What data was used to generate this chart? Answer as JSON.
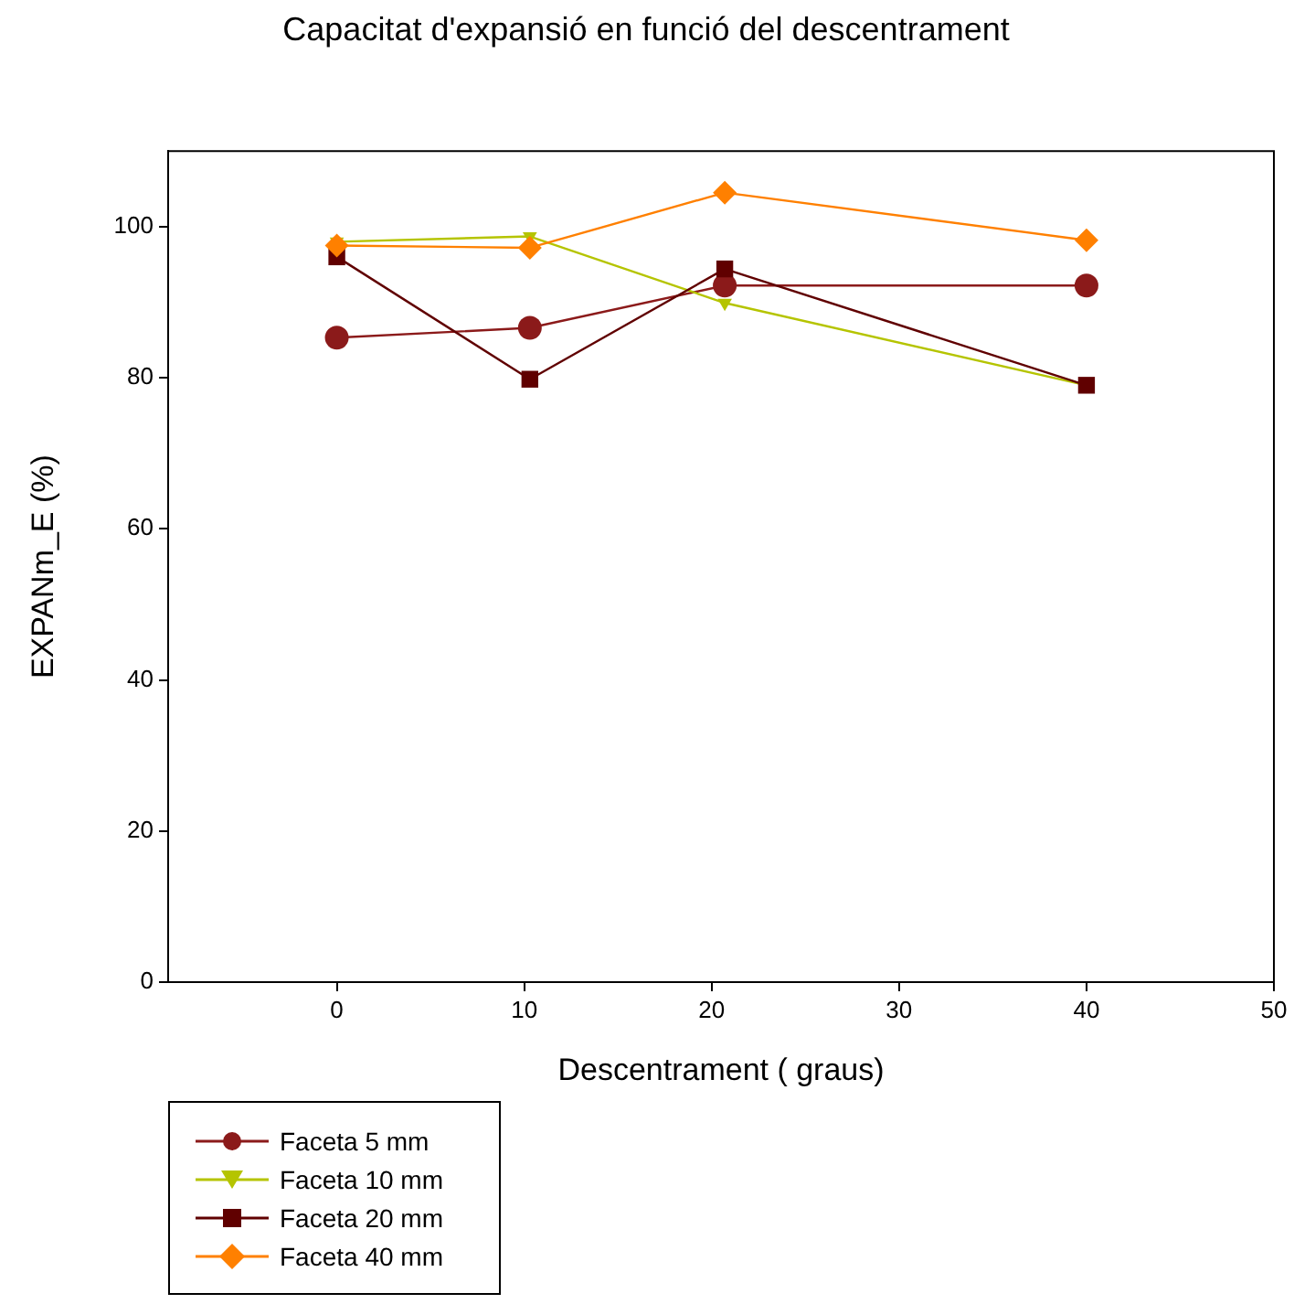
{
  "chart_data": {
    "type": "line",
    "title": "Capacitat d'expansió en funció del descentrament",
    "xlabel": "Descentrament ( graus)",
    "ylabel": "EXPANm_E (%)",
    "x": [
      0,
      10.3,
      20.7,
      40
    ],
    "series": [
      {
        "name": "Faceta 5 mm",
        "color": "#8b1a1a",
        "marker": "circle",
        "values": [
          85.3,
          86.6,
          92.2,
          92.2
        ]
      },
      {
        "name": "Faceta 10 mm",
        "color": "#b5c400",
        "marker": "triangle",
        "values": [
          98,
          98.7,
          89.9,
          79
        ]
      },
      {
        "name": "Faceta 20 mm",
        "color": "#600000",
        "marker": "square",
        "values": [
          96,
          79.8,
          94.4,
          79
        ]
      },
      {
        "name": "Faceta 40 mm",
        "color": "#ff8000",
        "marker": "diamond",
        "values": [
          97.5,
          97.2,
          104.5,
          98.2
        ]
      }
    ],
    "xlim": [
      -9,
      50
    ],
    "xticks": [
      0,
      10,
      20,
      30,
      40,
      50
    ],
    "ylim": [
      0,
      110
    ],
    "yticks": [
      0,
      20,
      40,
      60,
      80,
      100
    ],
    "grid": false,
    "legend": "bottom left"
  }
}
